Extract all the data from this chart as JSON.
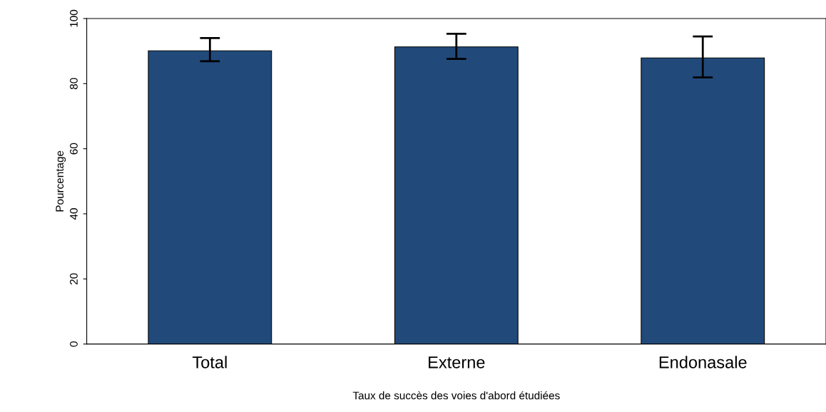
{
  "chart_data": {
    "type": "bar",
    "xlabel": "Taux de succès des voies d'abord étudiées",
    "ylabel": "Pourcentage",
    "categories": [
      "Total",
      "Externe",
      "Endonasale"
    ],
    "values": [
      90.1,
      91.3,
      87.9
    ],
    "color": "#214a7b",
    "errors": [
      [
        86.9,
        94.0
      ],
      [
        87.6,
        95.3
      ],
      [
        81.9,
        94.5
      ]
    ],
    "ylim": [
      0,
      100
    ],
    "yticks": [
      0,
      20,
      40,
      60,
      80,
      100
    ],
    "grid": false,
    "legend": false
  }
}
